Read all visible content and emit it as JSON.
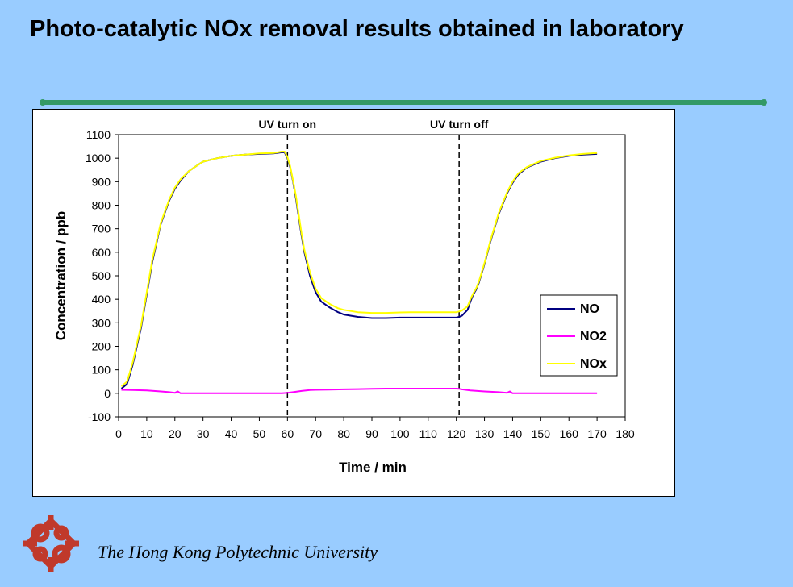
{
  "slide": {
    "title": "Photo-catalytic NOx removal results obtained in laboratory",
    "footer": "The Hong Kong Polytechnic University",
    "logo": "polyu-logo-icon",
    "accent_color": "#339966",
    "logo_color": "#c0392b"
  },
  "chart_data": {
    "type": "line",
    "xlabel": "Time / min",
    "ylabel": "Concentration / ppb",
    "xlim": [
      0,
      180
    ],
    "ylim": [
      -100,
      1100
    ],
    "xticks": [
      0,
      10,
      20,
      30,
      40,
      50,
      60,
      70,
      80,
      90,
      100,
      110,
      120,
      130,
      140,
      150,
      160,
      170,
      180
    ],
    "yticks": [
      -100,
      0,
      100,
      200,
      300,
      400,
      500,
      600,
      700,
      800,
      900,
      1000,
      1100
    ],
    "grid": false,
    "legend_position": "right",
    "annotations": [
      {
        "label": "UV turn on",
        "x": 60
      },
      {
        "label": "UV turn off",
        "x": 121
      }
    ],
    "series": [
      {
        "name": "NO",
        "color": "#000080",
        "x": [
          1,
          3,
          5,
          8,
          10,
          12,
          15,
          18,
          20,
          22,
          25,
          28,
          30,
          35,
          40,
          45,
          50,
          55,
          58,
          59,
          60,
          61,
          62,
          63,
          64,
          65,
          66,
          68,
          70,
          72,
          75,
          78,
          80,
          85,
          90,
          95,
          100,
          105,
          110,
          115,
          120,
          121,
          122,
          124,
          125,
          126,
          127,
          128,
          130,
          132,
          135,
          138,
          140,
          142,
          145,
          148,
          150,
          155,
          160,
          165,
          170
        ],
        "values": [
          20,
          40,
          120,
          280,
          420,
          560,
          720,
          820,
          870,
          905,
          945,
          970,
          985,
          1000,
          1010,
          1015,
          1018,
          1020,
          1025,
          1025,
          1000,
          960,
          900,
          830,
          750,
          670,
          600,
          500,
          430,
          390,
          365,
          345,
          335,
          325,
          320,
          320,
          322,
          322,
          322,
          322,
          322,
          325,
          330,
          355,
          390,
          420,
          440,
          470,
          550,
          640,
          760,
          850,
          895,
          930,
          960,
          975,
          985,
          1000,
          1010,
          1015,
          1018
        ]
      },
      {
        "name": "NO2",
        "color": "#ff00ff",
        "x": [
          1,
          5,
          10,
          15,
          18,
          20,
          21,
          22,
          25,
          30,
          40,
          50,
          55,
          58,
          60,
          62,
          65,
          68,
          70,
          75,
          80,
          85,
          90,
          95,
          100,
          105,
          110,
          115,
          120,
          121,
          122,
          125,
          130,
          135,
          138,
          139,
          140,
          145,
          150,
          160,
          170
        ],
        "values": [
          15,
          14,
          12,
          8,
          5,
          2,
          8,
          0,
          0,
          0,
          0,
          0,
          0,
          0,
          2,
          5,
          10,
          14,
          15,
          16,
          17,
          18,
          19,
          20,
          20,
          20,
          20,
          20,
          20,
          19,
          17,
          12,
          8,
          5,
          2,
          8,
          0,
          0,
          0,
          0,
          0
        ]
      },
      {
        "name": "NOx",
        "color": "#ffff00",
        "x": [
          1,
          3,
          5,
          8,
          10,
          12,
          15,
          18,
          20,
          22,
          25,
          28,
          30,
          35,
          40,
          45,
          50,
          55,
          58,
          59,
          60,
          61,
          62,
          63,
          64,
          65,
          66,
          68,
          70,
          72,
          75,
          78,
          80,
          85,
          90,
          95,
          100,
          105,
          110,
          115,
          120,
          121,
          122,
          124,
          125,
          126,
          127,
          128,
          130,
          132,
          135,
          138,
          140,
          142,
          145,
          148,
          150,
          155,
          160,
          165,
          170
        ],
        "values": [
          30,
          50,
          130,
          290,
          430,
          570,
          725,
          825,
          875,
          910,
          945,
          970,
          985,
          1000,
          1010,
          1015,
          1020,
          1022,
          1028,
          1028,
          1005,
          965,
          905,
          840,
          760,
          680,
          610,
          515,
          445,
          405,
          380,
          362,
          355,
          345,
          342,
          342,
          344,
          345,
          345,
          345,
          345,
          348,
          352,
          370,
          400,
          425,
          445,
          475,
          555,
          645,
          765,
          855,
          900,
          935,
          962,
          978,
          988,
          1002,
          1012,
          1018,
          1022
        ]
      }
    ]
  }
}
